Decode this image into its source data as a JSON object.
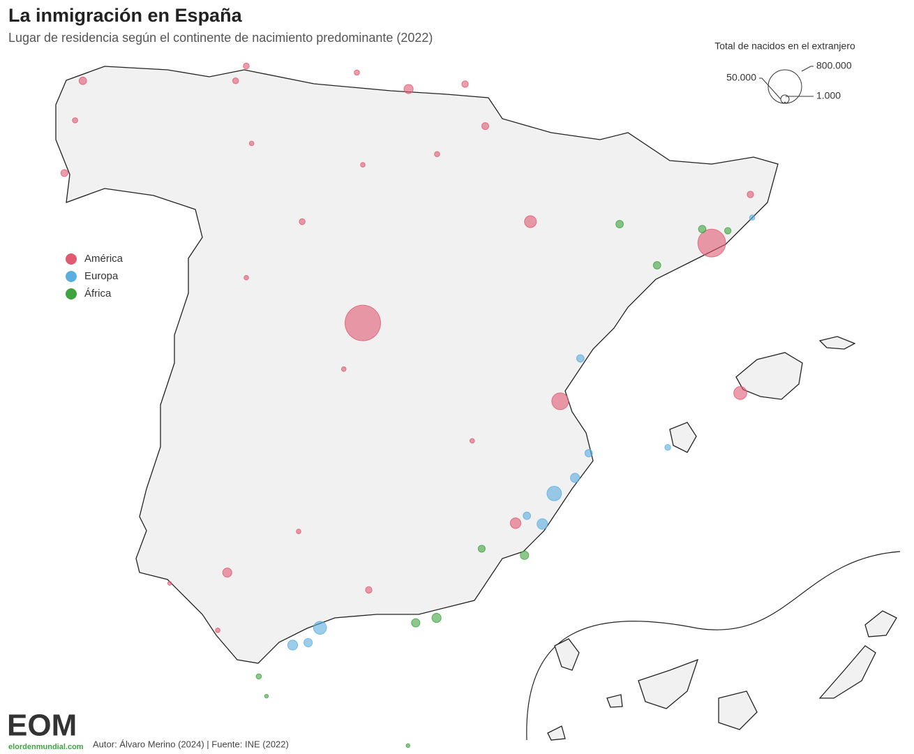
{
  "chart_data": {
    "type": "bubble-map",
    "title": "La inmigración en España",
    "subtitle": "Lugar de residencia según el continente de nacimiento predominante (2022)",
    "size_legend": {
      "title": "Total de nacidos en el extranjero",
      "values": [
        {
          "value": 800000,
          "label": "800.000"
        },
        {
          "value": 50000,
          "label": "50.000"
        },
        {
          "value": 1000,
          "label": "1.000"
        }
      ]
    },
    "series": [
      {
        "name": "América",
        "color": "#e05a72",
        "lon": [
          -3.7,
          2.17,
          -0.38,
          -2.93,
          -8.41,
          -8.72,
          -5.84,
          -5.66,
          -3.8,
          -0.88,
          -5.98,
          -1.13,
          2.65,
          -4.72,
          -5.66,
          -4.02,
          -4.78,
          -3.6,
          -8.54,
          -5.57,
          -3.7,
          -2.45,
          -1.64,
          -1.98,
          -1.86,
          -6.14,
          -6.95,
          2.82
        ],
        "lat": [
          40.42,
          41.39,
          39.47,
          43.26,
          43.36,
          42.24,
          43.36,
          43.54,
          43.46,
          41.65,
          37.39,
          37.99,
          39.57,
          41.65,
          40.97,
          39.86,
          37.89,
          37.18,
          42.88,
          42.6,
          42.34,
          42.47,
          42.81,
          43.32,
          38.99,
          36.69,
          37.26,
          41.98
        ],
        "values": [
          900000,
          550000,
          200000,
          60000,
          40000,
          35000,
          25000,
          25000,
          20000,
          100000,
          60000,
          80000,
          120000,
          25000,
          15000,
          15000,
          15000,
          30000,
          20000,
          15000,
          15000,
          20000,
          35000,
          30000,
          15000,
          15000,
          10000,
          30000
        ]
      },
      {
        "name": "Europa",
        "color": "#5aaee0",
        "lon": [
          -0.48,
          -0.68,
          -0.13,
          -4.42,
          -4.88,
          -4.62,
          -0.04,
          0.1,
          -0.94,
          1.43,
          2.85
        ],
        "lat": [
          38.35,
          37.98,
          38.54,
          36.72,
          36.51,
          36.54,
          39.99,
          38.84,
          38.08,
          38.91,
          41.7
        ],
        "values": [
          150000,
          80000,
          60000,
          120000,
          70000,
          50000,
          40000,
          40000,
          40000,
          25000,
          20000
        ]
      },
      {
        "name": "África",
        "color": "#3fa33f",
        "lon": [
          -2.46,
          -2.81,
          0.62,
          -0.98,
          -1.7,
          -5.45,
          -5.32,
          -2.94,
          1.25,
          2.01,
          2.44
        ],
        "lat": [
          36.84,
          36.78,
          41.62,
          37.6,
          37.68,
          36.13,
          35.89,
          35.29,
          41.12,
          41.56,
          41.54
        ],
        "values": [
          60000,
          50000,
          40000,
          50000,
          35000,
          20000,
          10000,
          10000,
          40000,
          40000,
          30000
        ]
      }
    ],
    "footer": "Autor: Álvaro Merino (2024) | Fuente: INE (2022)",
    "logo": "EOM",
    "logo_site": "elordenmundial.com"
  }
}
